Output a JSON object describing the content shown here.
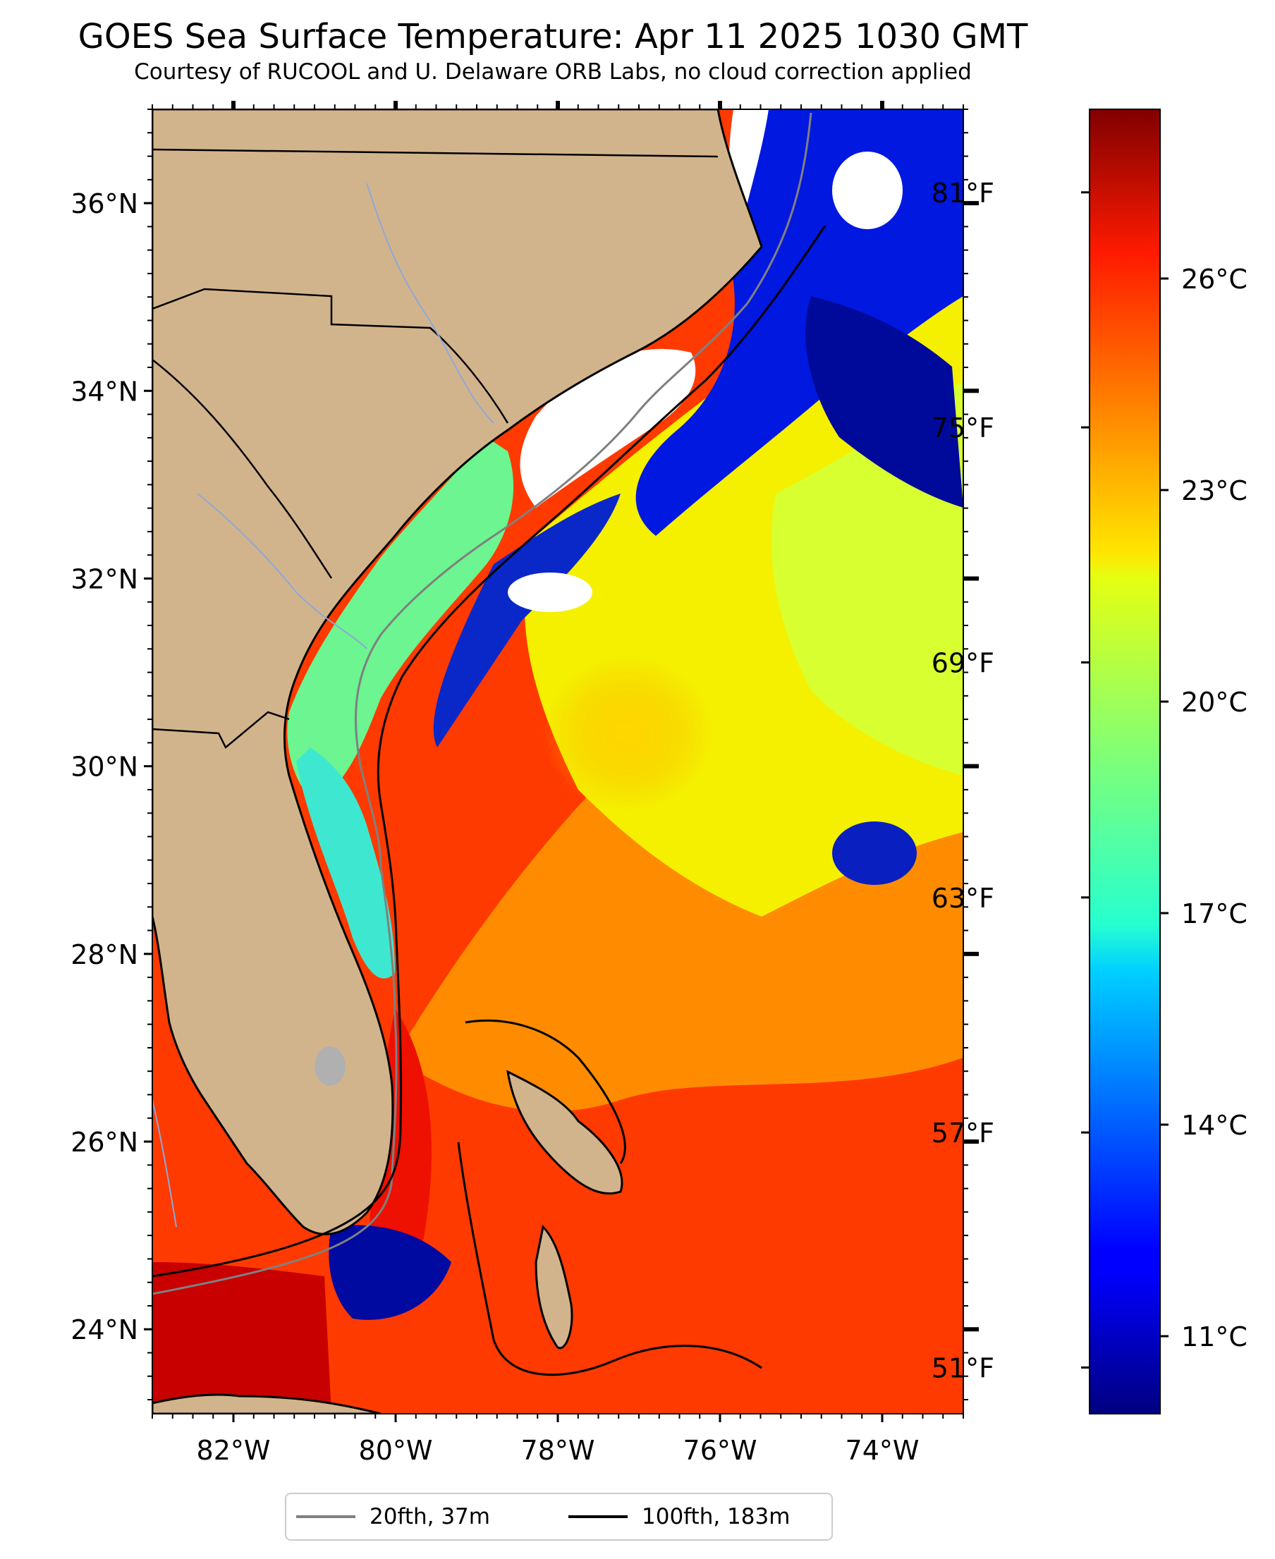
{
  "title": "GOES Sea Surface Temperature: Apr 11 2025 1030 GMT",
  "subtitle": "Courtesy of RUCOOL and U. Delaware ORB Labs, no cloud correction applied",
  "map": {
    "lon_range": [
      -83,
      -73
    ],
    "lat_range": [
      23.1,
      37
    ],
    "lat_ticks": [
      {
        "value": 36,
        "label": "36°N"
      },
      {
        "value": 34,
        "label": "34°N"
      },
      {
        "value": 32,
        "label": "32°N"
      },
      {
        "value": 30,
        "label": "30°N"
      },
      {
        "value": 28,
        "label": "28°N"
      },
      {
        "value": 26,
        "label": "26°N"
      },
      {
        "value": 24,
        "label": "24°N"
      }
    ],
    "lon_ticks": [
      {
        "value": -82,
        "label": "82°W"
      },
      {
        "value": -80,
        "label": "80°W"
      },
      {
        "value": -78,
        "label": "78°W"
      },
      {
        "value": -76,
        "label": "76°W"
      },
      {
        "value": -74,
        "label": "74°W"
      }
    ],
    "colors": {
      "land": "#d2b48c",
      "cloud": "#ffffff",
      "lake": "#b0b0b0",
      "river": "#8fa8d8"
    }
  },
  "colorbar": {
    "range_c": [
      9.9,
      28.4
    ],
    "celsius_ticks": [
      {
        "value": 26,
        "label": "26°C"
      },
      {
        "value": 23,
        "label": "23°C"
      },
      {
        "value": 20,
        "label": "20°C"
      },
      {
        "value": 17,
        "label": "17°C"
      },
      {
        "value": 14,
        "label": "14°C"
      },
      {
        "value": 11,
        "label": "11°C"
      }
    ],
    "fahrenheit_ticks": [
      {
        "value": 81,
        "label": "81°F"
      },
      {
        "value": 75,
        "label": "75°F"
      },
      {
        "value": 69,
        "label": "69°F"
      },
      {
        "value": 63,
        "label": "63°F"
      },
      {
        "value": 57,
        "label": "57°F"
      },
      {
        "value": 51,
        "label": "51°F"
      }
    ],
    "colormap": "jet"
  },
  "legend": {
    "items": [
      {
        "label": "20fth, 37m",
        "color": "#808080"
      },
      {
        "label": "100fth, 183m",
        "color": "#000000"
      }
    ],
    "placement": "bottom-center"
  }
}
